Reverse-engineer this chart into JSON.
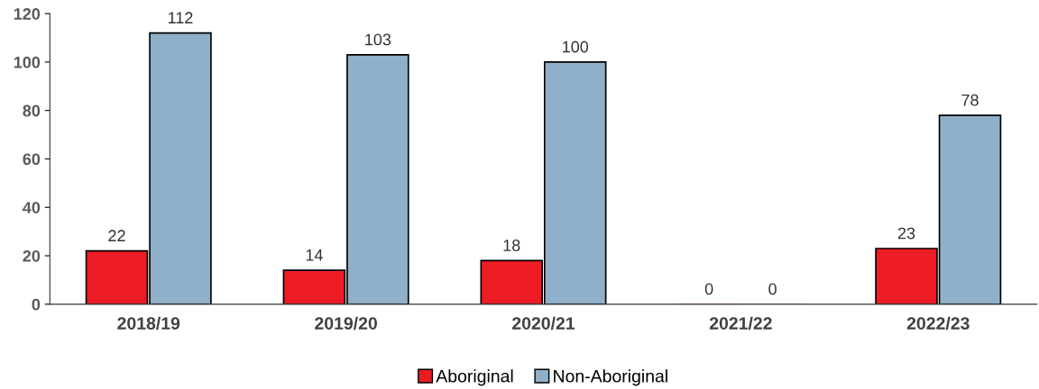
{
  "chart_data": {
    "type": "bar",
    "categories": [
      "2018/19",
      "2019/20",
      "2020/21",
      "2021/22",
      "2022/23"
    ],
    "series": [
      {
        "name": "Aboriginal",
        "color": "#ed1c24",
        "values": [
          22,
          14,
          18,
          0,
          23
        ]
      },
      {
        "name": "Non-Aboriginal",
        "color": "#8fb0c8",
        "values": [
          112,
          103,
          100,
          0,
          78
        ]
      }
    ],
    "ylim": [
      0,
      120
    ],
    "yticks": [
      0,
      20,
      40,
      60,
      80,
      100,
      120
    ],
    "grid": false,
    "legend": "bottom",
    "data_labels": true
  }
}
